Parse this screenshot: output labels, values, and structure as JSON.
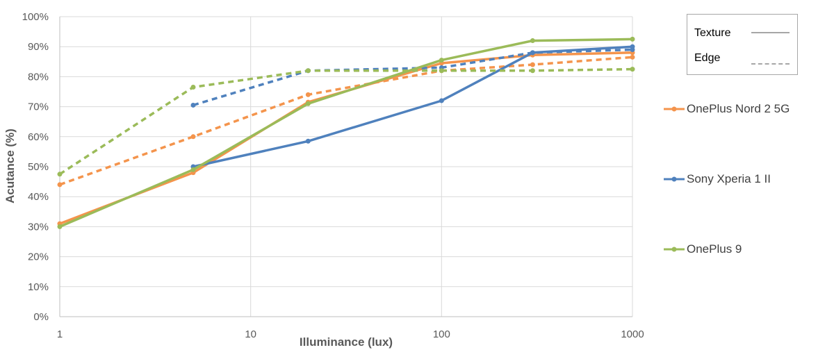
{
  "chart_data": {
    "type": "line",
    "xlabel": "Illuminance (lux)",
    "ylabel": "Acutance (%)",
    "xscale": "log",
    "xlim": [
      1,
      1000
    ],
    "ylim": [
      0,
      100
    ],
    "xticks": [
      "1",
      "10",
      "100",
      "1000"
    ],
    "yticks": [
      "0%",
      "10%",
      "20%",
      "30%",
      "40%",
      "50%",
      "60%",
      "70%",
      "80%",
      "90%",
      "100%"
    ],
    "grid": true,
    "style_legend": [
      {
        "label": "Texture",
        "dash": "solid"
      },
      {
        "label": "Edge",
        "dash": "dashed"
      }
    ],
    "series_legend_placement": "right",
    "series": [
      {
        "name": "OnePlus Nord 2 5G",
        "color": "#f4944c",
        "texture": {
          "x": [
            1,
            5,
            20,
            100,
            300,
            1000
          ],
          "y": [
            31,
            48,
            71.5,
            84.5,
            87.2,
            88
          ]
        },
        "edge": {
          "x": [
            1,
            5,
            20,
            100,
            300,
            1000
          ],
          "y": [
            44,
            60,
            74,
            82,
            84,
            86.5
          ]
        }
      },
      {
        "name": "Sony Xperia 1 II",
        "color": "#4f81bd",
        "texture": {
          "x": [
            5,
            20,
            100,
            300,
            1000
          ],
          "y": [
            50,
            58.5,
            72,
            88,
            90
          ]
        },
        "edge": {
          "x": [
            5,
            20,
            100,
            300,
            1000
          ],
          "y": [
            70.5,
            82,
            83,
            88,
            89
          ]
        }
      },
      {
        "name": "OnePlus 9",
        "color": "#9bbb59",
        "texture": {
          "x": [
            1,
            5,
            20,
            100,
            300,
            1000
          ],
          "y": [
            30,
            49,
            71,
            85.5,
            92,
            92.5
          ]
        },
        "edge": {
          "x": [
            1,
            5,
            20,
            100,
            300,
            1000
          ],
          "y": [
            47.5,
            76.5,
            82,
            82,
            82,
            82.5
          ]
        }
      }
    ]
  }
}
